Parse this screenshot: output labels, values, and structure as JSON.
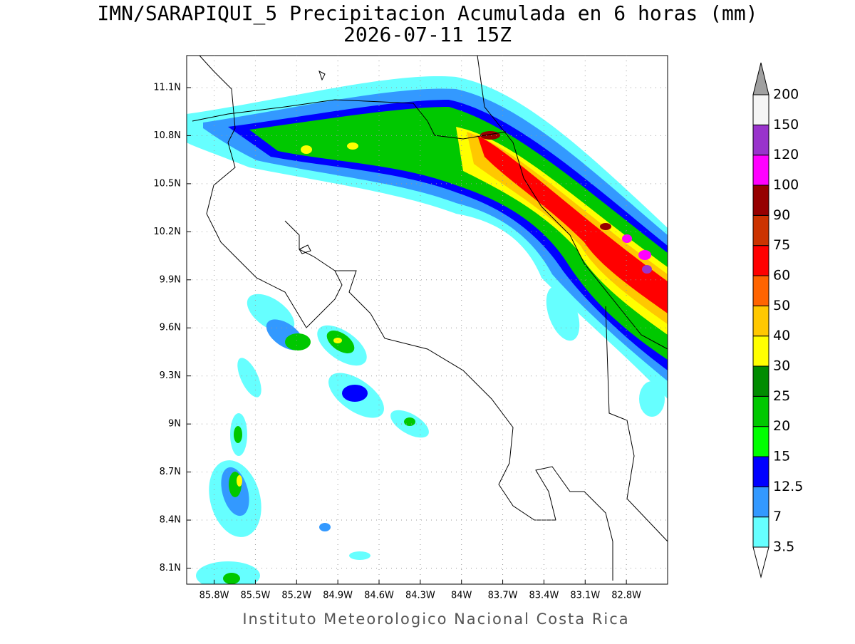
{
  "title": "IMN/SARAPIQUI_5 Precipitacion Acumulada en 6 horas (mm)",
  "subtitle": "2026-07-11 15Z",
  "footer": "Instituto Meteorologico Nacional Costa Rica",
  "map": {
    "xlim": [
      -86.0,
      -82.5
    ],
    "ylim": [
      8.0,
      11.3
    ],
    "grid": true,
    "xticks": [
      {
        "value": -85.8,
        "label": "85.8W"
      },
      {
        "value": -85.5,
        "label": "85.5W"
      },
      {
        "value": -85.2,
        "label": "85.2W"
      },
      {
        "value": -84.9,
        "label": "84.9W"
      },
      {
        "value": -84.6,
        "label": "84.6W"
      },
      {
        "value": -84.3,
        "label": "84.3W"
      },
      {
        "value": -84.0,
        "label": "84W"
      },
      {
        "value": -83.7,
        "label": "83.7W"
      },
      {
        "value": -83.4,
        "label": "83.4W"
      },
      {
        "value": -83.1,
        "label": "83.1W"
      },
      {
        "value": -82.8,
        "label": "82.8W"
      }
    ],
    "yticks": [
      {
        "value": 11.1,
        "label": "11.1N"
      },
      {
        "value": 10.8,
        "label": "10.8N"
      },
      {
        "value": 10.5,
        "label": "10.5N"
      },
      {
        "value": 10.2,
        "label": "10.2N"
      },
      {
        "value": 9.9,
        "label": "9.9N"
      },
      {
        "value": 9.6,
        "label": "9.6N"
      },
      {
        "value": 9.3,
        "label": "9.3N"
      },
      {
        "value": 9.0,
        "label": "9N"
      },
      {
        "value": 8.7,
        "label": "8.7N"
      },
      {
        "value": 8.4,
        "label": "8.4N"
      },
      {
        "value": 8.1,
        "label": "8.1N"
      }
    ]
  },
  "colorbar": {
    "levels": [
      3.5,
      7,
      12.5,
      15,
      20,
      25,
      30,
      40,
      50,
      60,
      75,
      90,
      100,
      120,
      150,
      200
    ],
    "colors": [
      "#66ffff",
      "#3399ff",
      "#0000ff",
      "#00ff00",
      "#00c800",
      "#008c00",
      "#ffff00",
      "#ffc800",
      "#ff6400",
      "#ff0000",
      "#cc3300",
      "#960000",
      "#ff00ff",
      "#9933cc",
      "#f5f5f5"
    ],
    "under_color": "#ffffff",
    "over_color": "#a0a0a0"
  }
}
